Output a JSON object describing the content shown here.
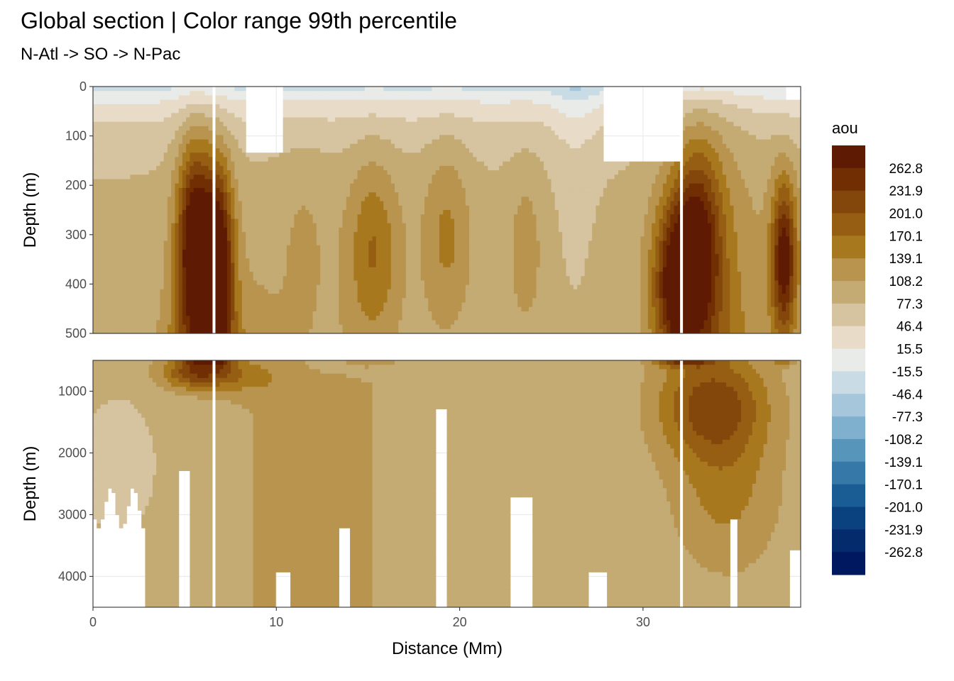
{
  "chart_data": {
    "type": "heatmap",
    "title": "Global section | Color range 99th percentile",
    "subtitle": "N-Atl -> SO -> N-Pac",
    "xlabel": "Distance (Mm)",
    "x_ticks": [
      "0",
      "10",
      "20",
      "30"
    ],
    "x_tick_values": [
      0,
      10,
      20,
      30
    ],
    "xlim": [
      0,
      38.6
    ],
    "grid": true,
    "legend_position": "right",
    "panels": [
      {
        "name": "upper",
        "ylabel": "Depth (m)",
        "ylim": [
          0,
          500
        ],
        "y_reversed": true,
        "y_ticks": [
          "0",
          "100",
          "200",
          "300",
          "400",
          "500"
        ],
        "y_tick_values": [
          0,
          100,
          200,
          300,
          400,
          500
        ]
      },
      {
        "name": "lower",
        "ylabel": "Depth (m)",
        "ylim": [
          500,
          4500
        ],
        "y_reversed": true,
        "y_ticks": [
          "1000",
          "2000",
          "3000",
          "4000"
        ],
        "y_tick_values": [
          1000,
          2000,
          3000,
          4000
        ]
      }
    ],
    "legend": {
      "title": "aou",
      "labels": [
        "262.8",
        "231.9",
        "201.0",
        "170.1",
        "139.1",
        "108.2",
        "77.3",
        "46.4",
        "15.5",
        "-15.5",
        "-46.4",
        "-77.3",
        "-108.2",
        "-139.1",
        "-170.1",
        "-201.0",
        "-231.9",
        "-262.8"
      ],
      "colors": [
        "#5e1a02",
        "#712e03",
        "#84470b",
        "#965e13",
        "#a8781f",
        "#b8944e",
        "#c4aa73",
        "#d6c39f",
        "#e8dcc8",
        "#e9ebe8",
        "#c9dce6",
        "#a6c7db",
        "#7fb0cd",
        "#5895bb",
        "#3679a8",
        "#1a5d94",
        "#0a4280",
        "#042b6b",
        "#001860"
      ]
    },
    "field_notes": "AOU section along N-Atl -> SO -> N-Pac; maxima near 5-6 Mm, 32-33 Mm and 37-38 Mm at depth"
  }
}
